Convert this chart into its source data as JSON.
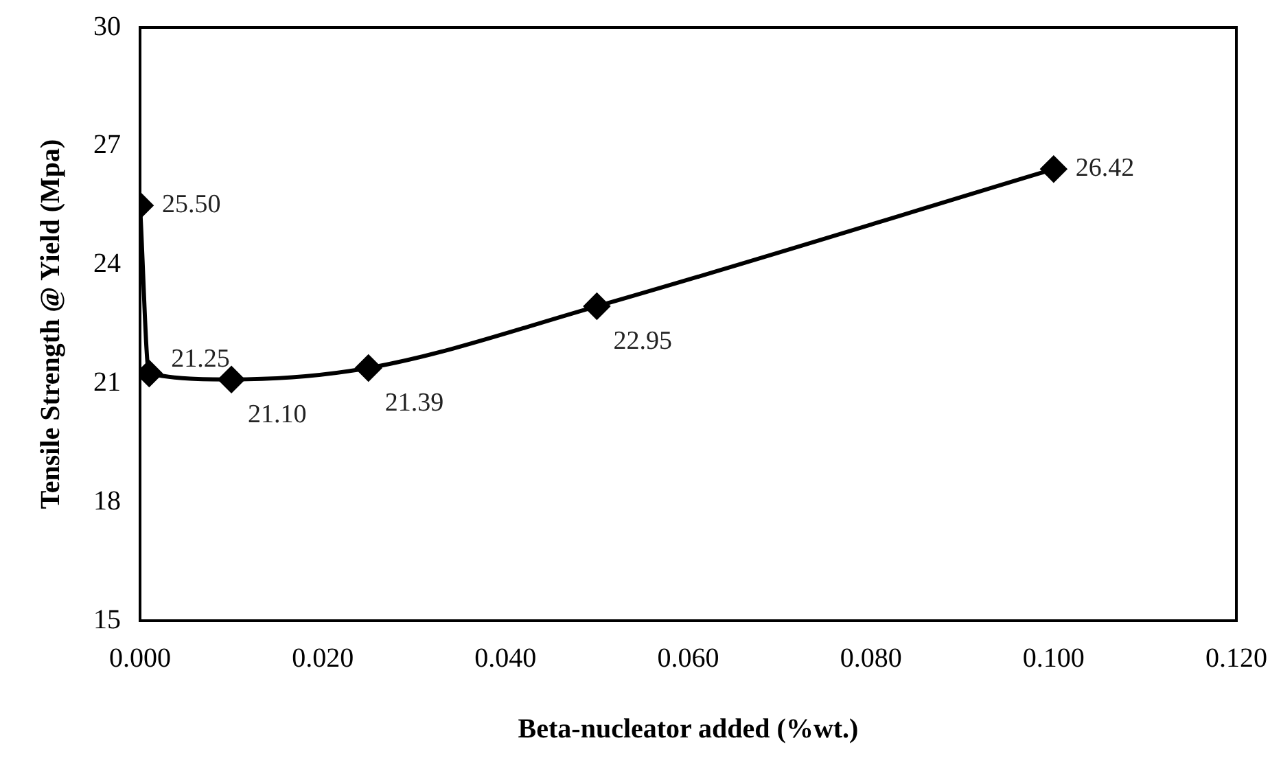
{
  "chart_data": {
    "type": "line",
    "xlabel": "Beta-nucleator added (%wt.)",
    "ylabel": "Tensile Strength @ Yield (Mpa)",
    "x": [
      0,
      0.001,
      0.01,
      0.025,
      0.05,
      0.1
    ],
    "series": [
      {
        "color": "#000000",
        "values": [
          25.5,
          21.25,
          21.1,
          21.39,
          22.95,
          26.42
        ],
        "value_labels": [
          "25.50",
          "21.25",
          "21.10",
          "21.39",
          "22.95",
          "26.42"
        ]
      }
    ],
    "xlim": [
      0,
      0.12
    ],
    "xticks": [
      {
        "value": 0,
        "label": "0.000"
      },
      {
        "value": 0.02,
        "label": "0.020"
      },
      {
        "value": 0.04,
        "label": "0.040"
      },
      {
        "value": 0.06,
        "label": "0.060"
      },
      {
        "value": 0.08,
        "label": "0.080"
      },
      {
        "value": 0.1,
        "label": "0.100"
      },
      {
        "value": 0.12,
        "label": "0.120"
      }
    ],
    "ylim": [
      15,
      30
    ],
    "yticks": [
      15,
      18,
      21,
      24,
      27,
      30
    ],
    "grid": false,
    "legend": false,
    "marker": "diamond",
    "line_style": "solid"
  }
}
